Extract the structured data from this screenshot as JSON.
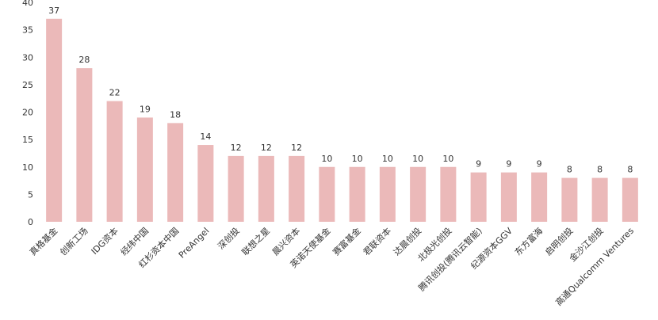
{
  "chart_data": {
    "type": "bar",
    "categories": [
      "真格基金",
      "创新工场",
      "IDG资本",
      "经纬中国",
      "红杉资本中国",
      "PreAngel",
      "深创投",
      "联想之星",
      "晨兴资本",
      "英诺天使基金",
      "赛富基金",
      "君联资本",
      "达晨创投",
      "北极光创投",
      "腾讯创投(腾讯云智能)",
      "纪源资本GGV",
      "东方富海",
      "启明创投",
      "金沙江创投",
      "高通Qualcomm Ventures"
    ],
    "values": [
      37,
      28,
      22,
      19,
      18,
      14,
      12,
      12,
      12,
      10,
      10,
      10,
      10,
      10,
      9,
      9,
      9,
      8,
      8,
      8
    ],
    "color": "#ebb9b9",
    "ylim": [
      0,
      40
    ],
    "yticks": [
      0,
      5,
      10,
      15,
      20,
      25,
      30,
      35,
      40
    ],
    "grid": false
  }
}
